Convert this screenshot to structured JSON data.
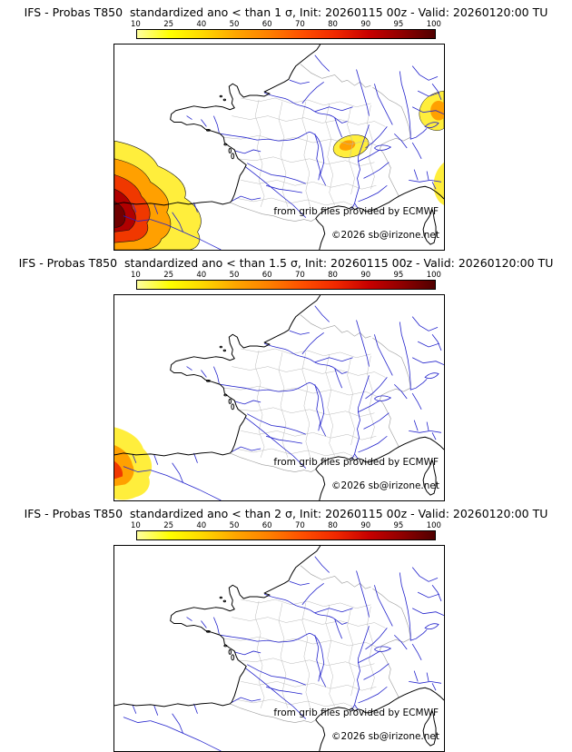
{
  "panels": [
    {
      "title": "IFS - Probas T850  standardized ano < than 1 σ, Init: 20260115 00z - Valid: 20260120:00 TU",
      "attribution": "from grib files provided by ECMWF",
      "copyright": "©2026 sb@irizone.net",
      "anomaly_areas": [
        "very high probabilities (up to 95-100%) in the southwest / Bay of Biscay corner near NW Spain",
        "moderate area (10-70%) over SE France near the Alps / Italian border",
        "moderate area (10-70%) near Lake Constance at the top-right edge",
        "weak band (10-25%) along the Ligurian / Italian right edge"
      ]
    },
    {
      "title": "IFS - Probas T850  standardized ano < than 1.5 σ, Init: 20260115 00z - Valid: 20260120:00 TU",
      "attribution": "from grib files provided by ECMWF",
      "copyright": "©2026 sb@irizone.net",
      "anomaly_areas": [
        "moderate probabilities (10-80%) confined to the southwest corner at the left edge near NW Spain"
      ]
    },
    {
      "title": "IFS - Probas T850  standardized ano < than 2 σ, Init: 20260115 00z - Valid: 20260120:00 TU",
      "attribution": "from grib files provided by ECMWF",
      "copyright": "©2026 sb@irizone.net",
      "anomaly_areas": []
    }
  ],
  "colorbar": {
    "ticks": [
      "10",
      "25",
      "40",
      "50",
      "60",
      "70",
      "80",
      "90",
      "95",
      "100"
    ],
    "colors": [
      "#ffffa0",
      "#ffff00",
      "#ffd700",
      "#ffa500",
      "#ff7f00",
      "#ff4f00",
      "#f02800",
      "#c80000",
      "#900000",
      "#500000"
    ]
  },
  "map": {
    "coast_color": "#000000",
    "river_color": "#2222cc",
    "department_color": "#b8b8b8",
    "border_color": "#999999"
  }
}
